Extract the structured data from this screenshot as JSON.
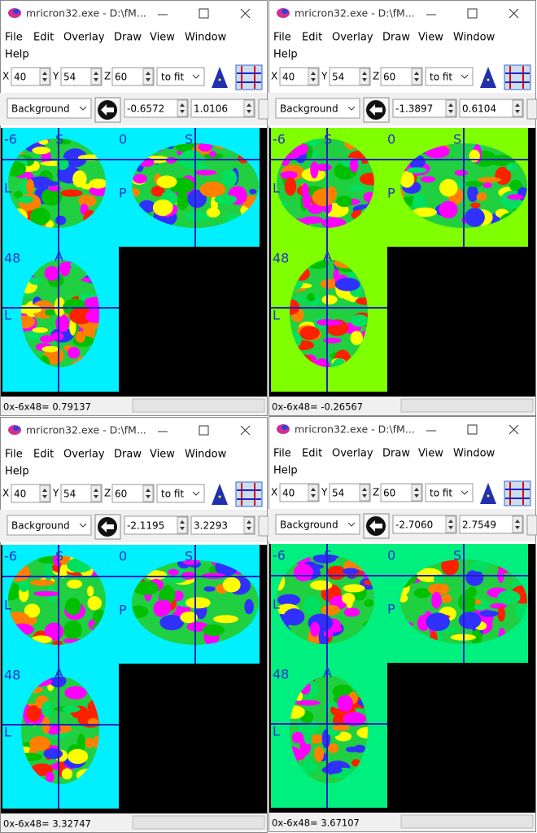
{
  "windows": [
    {
      "title": "mricron32.exe - D:\\fM...",
      "menu": [
        "File",
        "Edit",
        "Overlay",
        "Draw",
        "View",
        "Window",
        "Help"
      ],
      "toolbar": {
        "x_label": "X",
        "x": "40",
        "y_label": "Y",
        "y": "54",
        "z_label": "Z",
        "z": "60",
        "zoom": "to fit",
        "layer": "Background",
        "min": "-0.6572",
        "max": "1.0106"
      },
      "view_labels": {
        "coronal_slice": "-6",
        "coronal_top": "S",
        "sagittal_slice": "0",
        "sagittal_top": "S",
        "coronal_side": "L",
        "sagittal_side": "P",
        "axial_slice": "48",
        "axial_top": "A",
        "axial_side": "L"
      },
      "status": "0x-6x48= 0.79137",
      "background_color": "#00f0ff"
    },
    {
      "title": "mricron32.exe - D:\\fM...",
      "menu": [
        "File",
        "Edit",
        "Overlay",
        "Draw",
        "View",
        "Window",
        "Help"
      ],
      "toolbar": {
        "x_label": "X",
        "x": "40",
        "y_label": "Y",
        "y": "54",
        "z_label": "Z",
        "z": "60",
        "zoom": "to fit",
        "layer": "Background",
        "min": "-1.3897",
        "max": "0.6104"
      },
      "view_labels": {
        "coronal_slice": "-6",
        "coronal_top": "S",
        "sagittal_slice": "0",
        "sagittal_top": "S",
        "coronal_side": "L",
        "sagittal_side": "P",
        "axial_slice": "48",
        "axial_top": "A",
        "axial_side": "L"
      },
      "status": "0x-6x48= -0.26567",
      "background_color": "#80ff00"
    },
    {
      "title": "mricron32.exe - D:\\fM...",
      "menu": [
        "File",
        "Edit",
        "Overlay",
        "Draw",
        "View",
        "Window",
        "Help"
      ],
      "toolbar": {
        "x_label": "X",
        "x": "40",
        "y_label": "Y",
        "y": "54",
        "z_label": "Z",
        "z": "60",
        "zoom": "to fit",
        "layer": "Background",
        "min": "-2.1195",
        "max": "3.2293"
      },
      "view_labels": {
        "coronal_slice": "-6",
        "coronal_top": "S",
        "sagittal_slice": "0",
        "sagittal_top": "S",
        "coronal_side": "L",
        "sagittal_side": "P",
        "axial_slice": "48",
        "axial_top": "A",
        "axial_side": "L"
      },
      "status": "0x-6x48= 3.32747",
      "background_color": "#00f0ff"
    },
    {
      "title": "mricron32.exe - D:\\fM...",
      "menu": [
        "File",
        "Edit",
        "Overlay",
        "Draw",
        "View",
        "Window",
        "Help"
      ],
      "toolbar": {
        "x_label": "X",
        "x": "40",
        "y_label": "Y",
        "y": "54",
        "z_label": "Z",
        "z": "60",
        "zoom": "to fit",
        "layer": "Background",
        "min": "-2.7060",
        "max": "2.7549"
      },
      "view_labels": {
        "coronal_slice": "-6",
        "coronal_top": "S",
        "sagittal_slice": "0",
        "sagittal_top": "S",
        "coronal_side": "L",
        "sagittal_side": "P",
        "axial_slice": "48",
        "axial_top": "A",
        "axial_side": "L"
      },
      "status": "0x-6x48= 3.67107",
      "background_color": "#00f080"
    }
  ]
}
